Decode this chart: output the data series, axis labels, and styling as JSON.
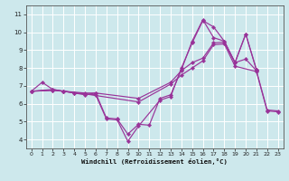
{
  "bg_color": "#cde8ec",
  "line_color": "#993399",
  "grid_color": "#ffffff",
  "xlim": [
    -0.5,
    23.5
  ],
  "ylim": [
    3.5,
    11.5
  ],
  "yticks": [
    4,
    5,
    6,
    7,
    8,
    9,
    10,
    11
  ],
  "xticks": [
    0,
    1,
    2,
    3,
    4,
    5,
    6,
    7,
    8,
    9,
    10,
    11,
    12,
    13,
    14,
    15,
    16,
    17,
    18,
    19,
    20,
    21,
    22,
    23
  ],
  "xlabel": "Windchill (Refroidissement éolien,°C)",
  "series": [
    {
      "x": [
        0,
        1,
        2,
        3,
        4,
        5,
        6,
        7,
        8,
        9,
        10,
        11,
        12,
        13,
        14,
        15,
        16,
        17,
        18,
        19,
        20,
        21
      ],
      "y": [
        6.7,
        7.2,
        6.8,
        6.7,
        6.6,
        6.5,
        6.6,
        5.2,
        5.15,
        4.3,
        4.85,
        4.8,
        6.3,
        6.5,
        7.9,
        9.5,
        10.7,
        9.7,
        9.5,
        8.3,
        9.9,
        7.9
      ]
    },
    {
      "x": [
        0,
        2,
        3,
        4,
        6,
        7,
        8,
        9,
        10,
        12,
        13,
        14,
        15,
        16,
        17,
        18,
        19,
        20,
        21
      ],
      "y": [
        6.7,
        6.8,
        6.7,
        6.6,
        6.5,
        5.15,
        5.1,
        3.9,
        4.75,
        6.2,
        6.4,
        8.0,
        9.4,
        10.65,
        10.3,
        9.5,
        8.3,
        9.9,
        7.9
      ]
    },
    {
      "x": [
        0,
        2,
        3,
        5,
        6,
        10,
        13,
        14,
        15,
        16,
        17,
        18,
        19,
        20,
        21,
        22,
        23
      ],
      "y": [
        6.7,
        6.75,
        6.7,
        6.6,
        6.6,
        6.3,
        7.2,
        7.85,
        8.3,
        8.55,
        9.4,
        9.45,
        8.3,
        8.5,
        7.85,
        5.65,
        5.6
      ]
    },
    {
      "x": [
        0,
        2,
        3,
        5,
        10,
        13,
        14,
        15,
        16,
        17,
        18,
        19,
        21,
        22,
        23
      ],
      "y": [
        6.7,
        6.75,
        6.7,
        6.55,
        6.1,
        7.1,
        7.6,
        8.0,
        8.4,
        9.3,
        9.35,
        8.1,
        7.8,
        5.6,
        5.55
      ]
    }
  ]
}
